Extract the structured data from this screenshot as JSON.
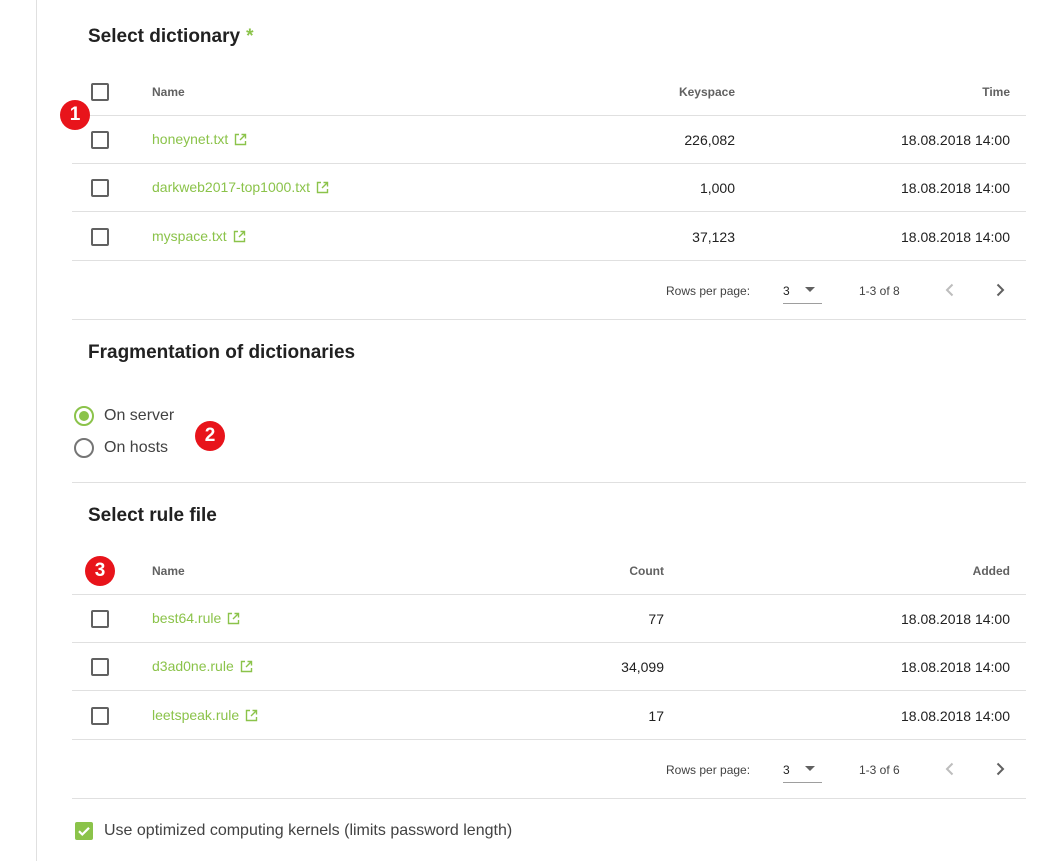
{
  "dictionary_section": {
    "title": "Select dictionary",
    "required_mark": "*",
    "columns": {
      "name": "Name",
      "keyspace": "Keyspace",
      "time": "Time"
    },
    "rows": [
      {
        "name": "honeynet.txt",
        "keyspace": "226,082",
        "time": "18.08.2018 14:00"
      },
      {
        "name": "darkweb2017-top1000.txt",
        "keyspace": "1,000",
        "time": "18.08.2018 14:00"
      },
      {
        "name": "myspace.txt",
        "keyspace": "37,123",
        "time": "18.08.2018 14:00"
      }
    ],
    "pagination": {
      "rows_per_page_label": "Rows per page:",
      "rows_per_page": "3",
      "range": "1-3 of 8"
    },
    "badge": "1"
  },
  "fragmentation_section": {
    "title": "Fragmentation of dictionaries",
    "options": [
      {
        "label": "On server",
        "selected": true
      },
      {
        "label": "On hosts",
        "selected": false
      }
    ],
    "badge": "2"
  },
  "rule_section": {
    "title": "Select rule file",
    "columns": {
      "name": "Name",
      "count": "Count",
      "added": "Added"
    },
    "rows": [
      {
        "name": "best64.rule",
        "count": "77",
        "added": "18.08.2018 14:00"
      },
      {
        "name": "d3ad0ne.rule",
        "count": "34,099",
        "added": "18.08.2018 14:00"
      },
      {
        "name": "leetspeak.rule",
        "count": "17",
        "added": "18.08.2018 14:00"
      }
    ],
    "pagination": {
      "rows_per_page_label": "Rows per page:",
      "rows_per_page": "3",
      "range": "1-3 of 6"
    },
    "badge": "3"
  },
  "optimized_kernels": {
    "label": "Use optimized computing kernels (limits password length)",
    "checked": true
  },
  "colors": {
    "accent": "#8bc34a",
    "badge": "#e8141b"
  },
  "icons": {
    "external_link": "open-in-new-icon",
    "pager_prev": "chevron-left-icon",
    "pager_next": "chevron-right-icon",
    "dropdown": "caret-down-icon"
  }
}
